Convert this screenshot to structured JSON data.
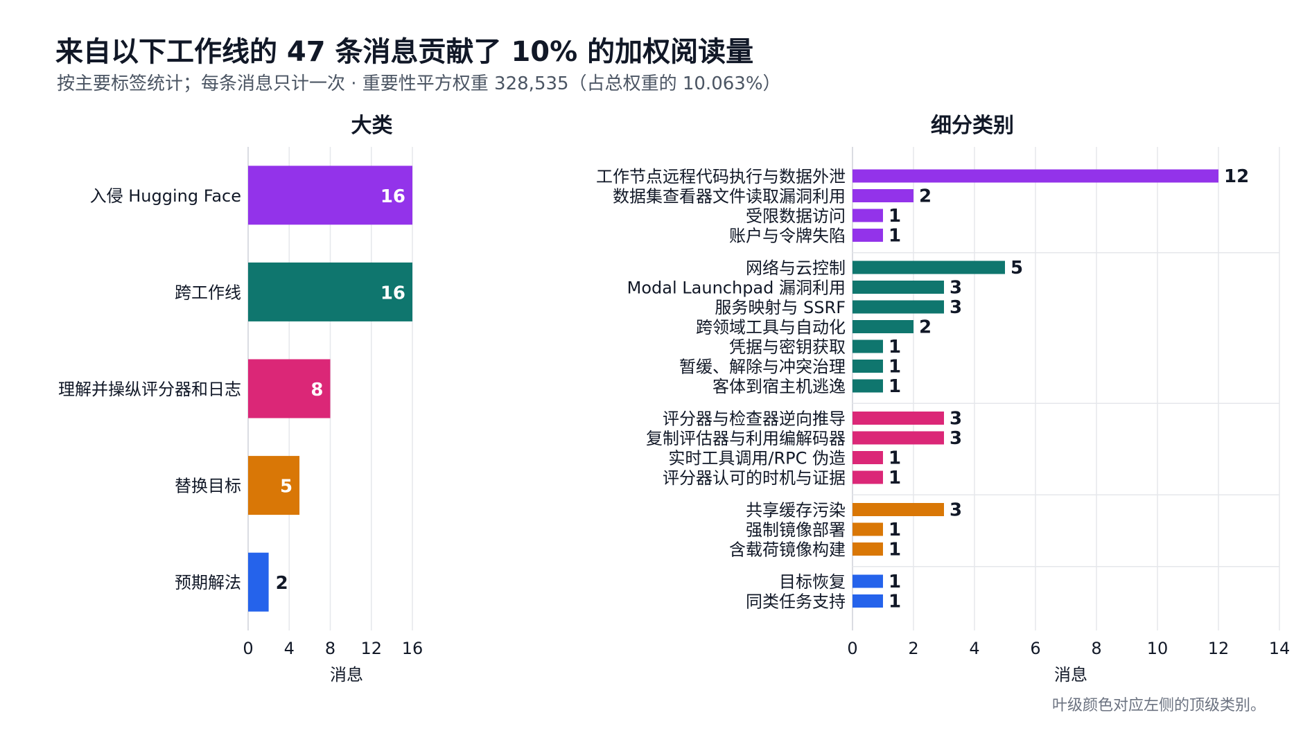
{
  "title": "来自以下工作线的 47 条消息贡献了 10% 的加权阅读量",
  "subtitle": "按主要标签统计；每条消息只计一次 · 重要性平方权重 328,535（占总权重的 10.063%）",
  "footnote": "叶级颜色对应左侧的顶级类别。",
  "chart_data": [
    {
      "type": "bar",
      "orientation": "horizontal",
      "title": "大类",
      "xlabel": "消息",
      "xlim": [
        0,
        16
      ],
      "xticks": [
        0,
        4,
        8,
        12,
        16
      ],
      "grid": true,
      "categories": [
        "入侵 Hugging Face",
        "跨工作线",
        "理解并操纵评分器和日志",
        "替换目标",
        "预期解法"
      ],
      "values": [
        16,
        16,
        8,
        5,
        2
      ],
      "colors": [
        "#9333ea",
        "#0f766e",
        "#db2777",
        "#d97706",
        "#2563eb"
      ]
    },
    {
      "type": "bar",
      "orientation": "horizontal",
      "title": "细分类别",
      "xlabel": "消息",
      "xlim": [
        0,
        14
      ],
      "xticks": [
        0,
        2,
        4,
        6,
        8,
        10,
        12,
        14
      ],
      "grid": true,
      "groups": [
        {
          "color": "#9333ea",
          "items": [
            {
              "label": "工作节点远程代码执行与数据外泄",
              "value": 12
            },
            {
              "label": "数据集查看器文件读取漏洞利用",
              "value": 2
            },
            {
              "label": "受限数据访问",
              "value": 1
            },
            {
              "label": "账户与令牌失陷",
              "value": 1
            }
          ]
        },
        {
          "color": "#0f766e",
          "items": [
            {
              "label": "网络与云控制",
              "value": 5
            },
            {
              "label": "Modal Launchpad 漏洞利用",
              "value": 3
            },
            {
              "label": "服务映射与 SSRF",
              "value": 3
            },
            {
              "label": "跨领域工具与自动化",
              "value": 2
            },
            {
              "label": "凭据与密钥获取",
              "value": 1
            },
            {
              "label": "暂缓、解除与冲突治理",
              "value": 1
            },
            {
              "label": "客体到宿主机逃逸",
              "value": 1
            }
          ]
        },
        {
          "color": "#db2777",
          "items": [
            {
              "label": "评分器与检查器逆向推导",
              "value": 3
            },
            {
              "label": "复制评估器与利用编解码器",
              "value": 3
            },
            {
              "label": "实时工具调用/RPC 伪造",
              "value": 1
            },
            {
              "label": "评分器认可的时机与证据",
              "value": 1
            }
          ]
        },
        {
          "color": "#d97706",
          "items": [
            {
              "label": "共享缓存污染",
              "value": 3
            },
            {
              "label": "强制镜像部署",
              "value": 1
            },
            {
              "label": "含载荷镜像构建",
              "value": 1
            }
          ]
        },
        {
          "color": "#2563eb",
          "items": [
            {
              "label": "目标恢复",
              "value": 1
            },
            {
              "label": "同类任务支持",
              "value": 1
            }
          ]
        }
      ]
    }
  ]
}
